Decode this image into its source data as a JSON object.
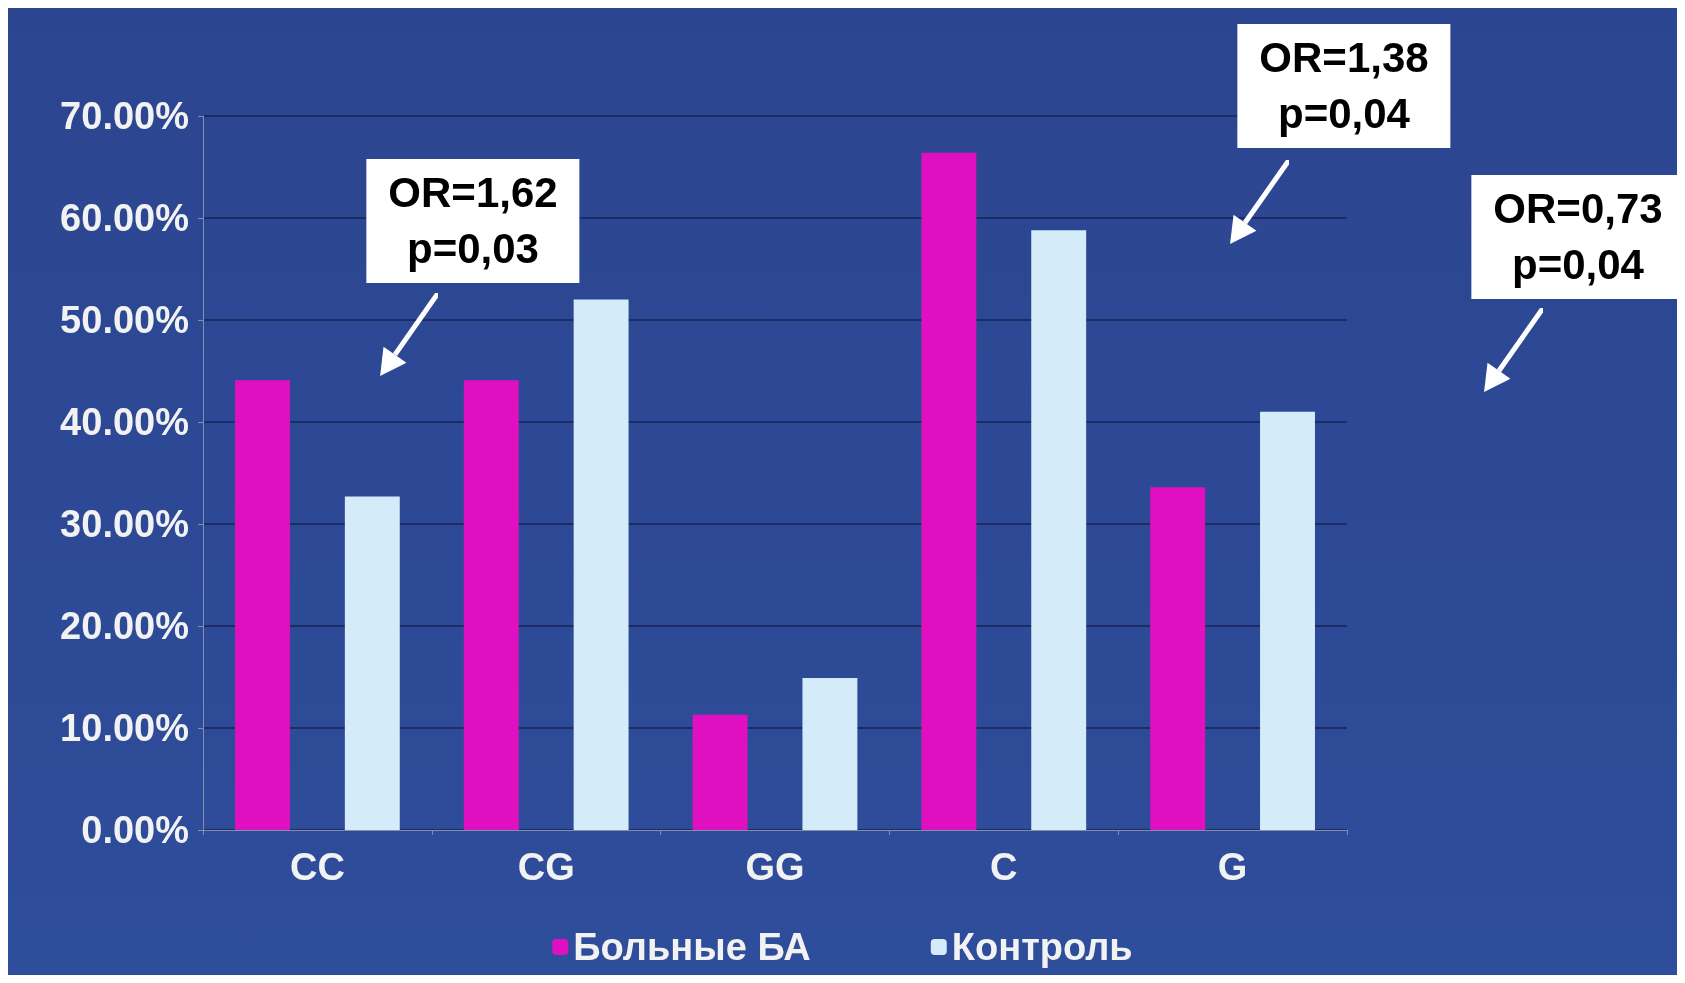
{
  "chart_data": {
    "type": "bar",
    "categories": [
      "CC",
      "CG",
      "GG",
      "C",
      "G"
    ],
    "series": [
      {
        "name": "Больные БА",
        "color": "#e010c0",
        "values": [
          44.1,
          44.1,
          11.3,
          66.4,
          33.6
        ]
      },
      {
        "name": "Контроль",
        "color": "#d4ecfa",
        "values": [
          32.7,
          52.0,
          14.9,
          58.8,
          41.0
        ]
      }
    ],
    "ylim": [
      0,
      70
    ],
    "yticks": [
      {
        "value": 0,
        "label": "0.00%"
      },
      {
        "value": 10,
        "label": "10.00%"
      },
      {
        "value": 20,
        "label": "20.00%"
      },
      {
        "value": 30,
        "label": "30.00%"
      },
      {
        "value": 40,
        "label": "40.00%"
      },
      {
        "value": 50,
        "label": "50.00%"
      },
      {
        "value": 60,
        "label": "60.00%"
      },
      {
        "value": 70,
        "label": "70.00%"
      }
    ],
    "grid": "y",
    "legend": "bottom",
    "annotations": [
      "OR=1,62\np=0,03",
      "OR=1,38\np=0,04",
      "OR=0,73\np=0,04"
    ]
  }
}
